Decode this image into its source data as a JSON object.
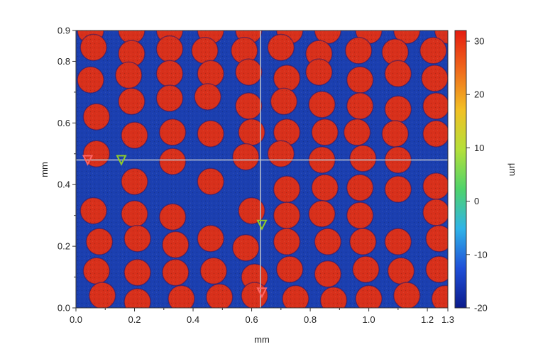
{
  "chart_data": {
    "type": "heatmap",
    "title": "",
    "xlabel": "mm",
    "ylabel": "mm",
    "xlim": [
      0,
      1.27
    ],
    "ylim": [
      0,
      0.9
    ],
    "x_ticks": [
      {
        "value": 0.0,
        "label": "0.0"
      },
      {
        "value": 0.2,
        "label": "0.2"
      },
      {
        "value": 0.4,
        "label": "0.4"
      },
      {
        "value": 0.6,
        "label": "0.6"
      },
      {
        "value": 0.8,
        "label": "0.8"
      },
      {
        "value": 1.0,
        "label": "1.0"
      },
      {
        "value": 1.2,
        "label": "1.2"
      },
      {
        "value": 1.27,
        "label": "1.3"
      }
    ],
    "y_ticks": [
      {
        "value": 0.0,
        "label": "0.0"
      },
      {
        "value": 0.2,
        "label": "0.2"
      },
      {
        "value": 0.4,
        "label": "0.4"
      },
      {
        "value": 0.6,
        "label": "0.6"
      },
      {
        "value": 0.8,
        "label": "0.8"
      },
      {
        "value": 0.9,
        "label": "0.9"
      }
    ],
    "colorbar": {
      "label": "µm",
      "range": [
        -20,
        32
      ],
      "ticks": [
        {
          "value": 30,
          "label": "30"
        },
        {
          "value": 20,
          "label": "20"
        },
        {
          "value": 10,
          "label": "10"
        },
        {
          "value": 0,
          "label": "0"
        },
        {
          "value": -10,
          "label": "-10"
        },
        {
          "value": -20,
          "label": "-20"
        }
      ],
      "colors": [
        "#0b1b8c",
        "#1f4fd8",
        "#2fb4e8",
        "#4fd36b",
        "#b5e03a",
        "#f2c024",
        "#f06a1c",
        "#e51c10"
      ]
    },
    "background_color": "#1b3fb0",
    "dot_color": "#d8301b",
    "dot_diameter_mm": 0.09,
    "crosshair": {
      "x": 0.63,
      "y": 0.48
    },
    "markers": [
      {
        "x": 0.04,
        "y": 0.48,
        "color": "#ff6666"
      },
      {
        "x": 0.155,
        "y": 0.48,
        "color": "#8fcc2a"
      },
      {
        "x": 0.635,
        "y": 0.27,
        "color": "#8fcc2a"
      },
      {
        "x": 0.635,
        "y": 0.05,
        "color": "#ff6666"
      }
    ],
    "dots": [
      {
        "x": 0.05,
        "y": 0.9
      },
      {
        "x": 0.19,
        "y": 0.9
      },
      {
        "x": 0.32,
        "y": 0.9
      },
      {
        "x": 0.46,
        "y": 0.9
      },
      {
        "x": 0.59,
        "y": 0.9
      },
      {
        "x": 0.73,
        "y": 0.9
      },
      {
        "x": 0.86,
        "y": 0.9
      },
      {
        "x": 1.0,
        "y": 0.9
      },
      {
        "x": 1.13,
        "y": 0.9
      },
      {
        "x": 1.27,
        "y": 0.9
      },
      {
        "x": 0.06,
        "y": 0.845
      },
      {
        "x": 0.19,
        "y": 0.825
      },
      {
        "x": 0.32,
        "y": 0.84
      },
      {
        "x": 0.44,
        "y": 0.835
      },
      {
        "x": 0.575,
        "y": 0.835
      },
      {
        "x": 0.7,
        "y": 0.845
      },
      {
        "x": 0.83,
        "y": 0.825
      },
      {
        "x": 0.965,
        "y": 0.835
      },
      {
        "x": 1.09,
        "y": 0.83
      },
      {
        "x": 1.22,
        "y": 0.835
      },
      {
        "x": 0.05,
        "y": 0.74
      },
      {
        "x": 0.18,
        "y": 0.755
      },
      {
        "x": 0.32,
        "y": 0.76
      },
      {
        "x": 0.46,
        "y": 0.76
      },
      {
        "x": 0.59,
        "y": 0.765
      },
      {
        "x": 0.72,
        "y": 0.745
      },
      {
        "x": 0.83,
        "y": 0.765
      },
      {
        "x": 0.97,
        "y": 0.74
      },
      {
        "x": 1.1,
        "y": 0.76
      },
      {
        "x": 1.225,
        "y": 0.745
      },
      {
        "x": 0.07,
        "y": 0.62
      },
      {
        "x": 0.19,
        "y": 0.67
      },
      {
        "x": 0.32,
        "y": 0.68
      },
      {
        "x": 0.45,
        "y": 0.685
      },
      {
        "x": 0.59,
        "y": 0.655
      },
      {
        "x": 0.71,
        "y": 0.67
      },
      {
        "x": 0.84,
        "y": 0.66
      },
      {
        "x": 0.97,
        "y": 0.655
      },
      {
        "x": 1.1,
        "y": 0.645
      },
      {
        "x": 1.23,
        "y": 0.655
      },
      {
        "x": 0.2,
        "y": 0.56
      },
      {
        "x": 0.33,
        "y": 0.57
      },
      {
        "x": 0.46,
        "y": 0.565
      },
      {
        "x": 0.6,
        "y": 0.57
      },
      {
        "x": 0.72,
        "y": 0.57
      },
      {
        "x": 0.85,
        "y": 0.57
      },
      {
        "x": 0.96,
        "y": 0.57
      },
      {
        "x": 1.09,
        "y": 0.565
      },
      {
        "x": 1.23,
        "y": 0.565
      },
      {
        "x": 0.07,
        "y": 0.5
      },
      {
        "x": 0.33,
        "y": 0.475
      },
      {
        "x": 0.58,
        "y": 0.49
      },
      {
        "x": 0.7,
        "y": 0.5
      },
      {
        "x": 0.84,
        "y": 0.48
      },
      {
        "x": 0.98,
        "y": 0.485
      },
      {
        "x": 1.1,
        "y": 0.48
      },
      {
        "x": 0.2,
        "y": 0.41
      },
      {
        "x": 0.46,
        "y": 0.41
      },
      {
        "x": 0.72,
        "y": 0.385
      },
      {
        "x": 0.85,
        "y": 0.39
      },
      {
        "x": 0.97,
        "y": 0.39
      },
      {
        "x": 1.1,
        "y": 0.385
      },
      {
        "x": 1.23,
        "y": 0.395
      },
      {
        "x": 0.06,
        "y": 0.315
      },
      {
        "x": 0.2,
        "y": 0.305
      },
      {
        "x": 0.33,
        "y": 0.295
      },
      {
        "x": 0.6,
        "y": 0.315
      },
      {
        "x": 0.72,
        "y": 0.3
      },
      {
        "x": 0.84,
        "y": 0.305
      },
      {
        "x": 0.97,
        "y": 0.3
      },
      {
        "x": 1.23,
        "y": 0.31
      },
      {
        "x": 0.08,
        "y": 0.215
      },
      {
        "x": 0.21,
        "y": 0.225
      },
      {
        "x": 0.34,
        "y": 0.205
      },
      {
        "x": 0.46,
        "y": 0.225
      },
      {
        "x": 0.58,
        "y": 0.195
      },
      {
        "x": 0.72,
        "y": 0.215
      },
      {
        "x": 0.86,
        "y": 0.215
      },
      {
        "x": 0.98,
        "y": 0.215
      },
      {
        "x": 1.1,
        "y": 0.215
      },
      {
        "x": 1.24,
        "y": 0.225
      },
      {
        "x": 0.07,
        "y": 0.12
      },
      {
        "x": 0.21,
        "y": 0.115
      },
      {
        "x": 0.34,
        "y": 0.115
      },
      {
        "x": 0.47,
        "y": 0.12
      },
      {
        "x": 0.61,
        "y": 0.1
      },
      {
        "x": 0.73,
        "y": 0.125
      },
      {
        "x": 0.86,
        "y": 0.11
      },
      {
        "x": 0.99,
        "y": 0.125
      },
      {
        "x": 1.11,
        "y": 0.12
      },
      {
        "x": 1.24,
        "y": 0.125
      },
      {
        "x": 0.09,
        "y": 0.04
      },
      {
        "x": 0.21,
        "y": 0.02
      },
      {
        "x": 0.36,
        "y": 0.03
      },
      {
        "x": 0.49,
        "y": 0.035
      },
      {
        "x": 0.61,
        "y": 0.04
      },
      {
        "x": 0.75,
        "y": 0.03
      },
      {
        "x": 0.88,
        "y": 0.025
      },
      {
        "x": 1.0,
        "y": 0.03
      },
      {
        "x": 1.13,
        "y": 0.04
      },
      {
        "x": 1.26,
        "y": 0.03
      }
    ]
  }
}
